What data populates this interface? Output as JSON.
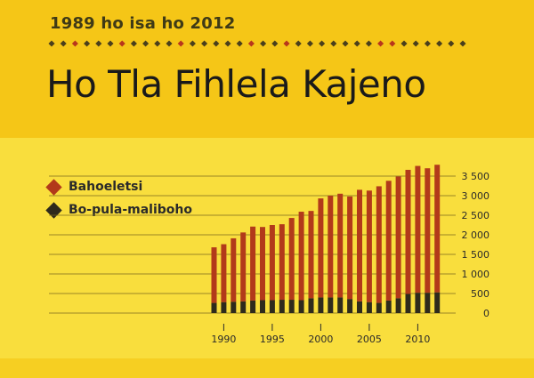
{
  "header": {
    "subtitle": "1989 ho isa ho 2012",
    "title": "Ho Tla Fihlela Kajeno"
  },
  "colors": {
    "bg_top": "#f5c617",
    "bg_bottom": "#f9de3d",
    "series_top": "#b23a1a",
    "series_bottom": "#2e2a1c",
    "dot_red": "#b8361c",
    "dot_dark": "#4a3f1c"
  },
  "chart_data": {
    "type": "bar",
    "stacked": true,
    "x": [
      1989,
      1990,
      1991,
      1992,
      1993,
      1994,
      1995,
      1996,
      1997,
      1998,
      1999,
      2000,
      2001,
      2002,
      2003,
      2004,
      2005,
      2006,
      2007,
      2008,
      2009,
      2010,
      2011,
      2012
    ],
    "series": [
      {
        "name": "Bahoeletsi",
        "values": [
          1420,
          1480,
          1620,
          1760,
          1890,
          1870,
          1920,
          1930,
          2090,
          2260,
          2230,
          2530,
          2600,
          2650,
          2620,
          2850,
          2850,
          2980,
          3060,
          3110,
          3170,
          3240,
          3180,
          3260
        ]
      },
      {
        "name": "Bo-pula-maliboho",
        "values": [
          260,
          280,
          290,
          300,
          320,
          330,
          330,
          340,
          340,
          330,
          380,
          400,
          400,
          400,
          360,
          300,
          280,
          260,
          320,
          380,
          490,
          520,
          520,
          530
        ]
      }
    ],
    "xticks": [
      "1990",
      "1995",
      "2000",
      "2005",
      "2010"
    ],
    "yticks": [
      "0",
      "500",
      "1 000",
      "1 500",
      "2 000",
      "2 500",
      "3 000",
      "3 500"
    ],
    "ylim": [
      0,
      3800
    ],
    "legend_position": "left"
  }
}
